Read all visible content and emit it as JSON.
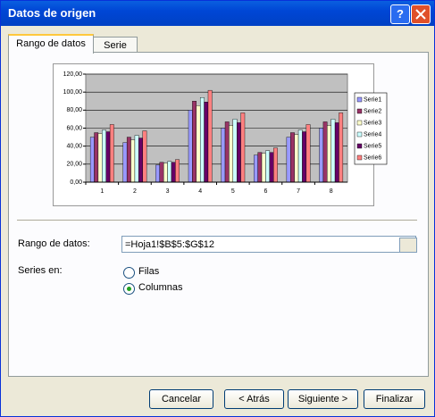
{
  "window": {
    "title": "Datos de origen",
    "help_button": "?",
    "tabs": [
      "Rango de datos",
      "Serie"
    ],
    "range_label": "Rango de datos:",
    "range_value": "=Hoja1!$B$5:$G$12",
    "series_in_label": "Series en:",
    "options": [
      "Filas",
      "Columnas"
    ],
    "buttons": [
      "Cancelar",
      "< Atrás",
      "Siguiente >",
      "Finalizar"
    ]
  },
  "chart_data": {
    "type": "bar",
    "categories": [
      "1",
      "2",
      "3",
      "4",
      "5",
      "6",
      "7",
      "8"
    ],
    "series": [
      {
        "name": "Serie1",
        "color": "#9999ff",
        "values": [
          50,
          44,
          19,
          80,
          60,
          30,
          50,
          60
        ]
      },
      {
        "name": "Serie2",
        "color": "#993366",
        "values": [
          55,
          50,
          22,
          90,
          67,
          33,
          55,
          67
        ]
      },
      {
        "name": "Serie3",
        "color": "#ffffcc",
        "values": [
          54,
          47,
          21,
          85,
          63,
          32,
          53,
          63
        ]
      },
      {
        "name": "Serie4",
        "color": "#ccffff",
        "values": [
          58,
          52,
          23,
          94,
          70,
          35,
          58,
          70
        ]
      },
      {
        "name": "Serie5",
        "color": "#660066",
        "values": [
          56,
          49,
          22,
          89,
          66,
          33,
          56,
          66
        ]
      },
      {
        "name": "Serie6",
        "color": "#ff8080",
        "values": [
          64,
          57,
          25,
          102,
          77,
          38,
          64,
          77
        ]
      }
    ],
    "ylim": [
      0,
      120
    ],
    "yticks": [
      {
        "value": 0,
        "label": "0,00"
      },
      {
        "value": 20,
        "label": "20,00"
      },
      {
        "value": 40,
        "label": "40,00"
      },
      {
        "value": 60,
        "label": "60,00"
      },
      {
        "value": 80,
        "label": "80,00"
      },
      {
        "value": 100,
        "label": "100,00"
      },
      {
        "value": 120,
        "label": "120,00"
      }
    ],
    "grid": true,
    "legend": "right"
  }
}
